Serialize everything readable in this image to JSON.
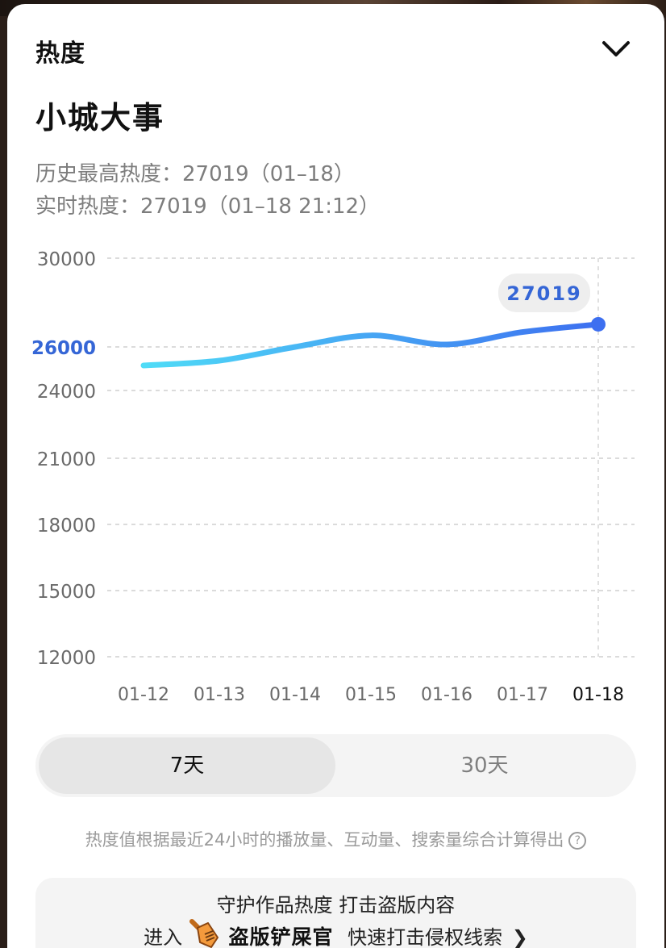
{
  "header": {
    "title": "热度",
    "collapse_icon": "chevron-down-icon"
  },
  "work": {
    "title": "小城大事"
  },
  "stats": {
    "peak_label": "历史最高热度：",
    "peak_value": "27019",
    "peak_date": "（01–18）",
    "realtime_label": "实时热度：",
    "realtime_value": "27019",
    "realtime_time": "（01–18 21:12）"
  },
  "chart_data": {
    "type": "line",
    "title": "",
    "xlabel": "",
    "ylabel": "",
    "categories": [
      "01-12",
      "01-13",
      "01-14",
      "01-15",
      "01-16",
      "01-17",
      "01-18"
    ],
    "series": [
      {
        "name": "热度",
        "values": [
          25150,
          25370,
          26000,
          26520,
          26110,
          26670,
          27019
        ]
      }
    ],
    "y_ticks": [
      30000,
      26000,
      24000,
      21000,
      18000,
      15000,
      12000
    ],
    "highlight_tick": 26000,
    "ylim": [
      12000,
      30000
    ],
    "grid": true,
    "legend": "none",
    "tooltip": {
      "category": "01-18",
      "value": "27019"
    },
    "colors": {
      "line_start": "#4fdcf7",
      "line_end": "#3d6ff0",
      "highlight": "#3566d6",
      "tick_text": "#6a6a6a",
      "grid": "#cfcfcf"
    }
  },
  "range_selector": {
    "options": [
      {
        "label": "7天",
        "active": true
      },
      {
        "label": "30天",
        "active": false
      }
    ]
  },
  "footnote": {
    "text": "热度值根据最近24小时的播放量、互动量、搜索量综合计算得出",
    "help_icon": "?"
  },
  "promo": {
    "line1": "守护作品热度 打击盗版内容",
    "enter": "进入",
    "brand": "盗版铲屎官",
    "action": "快速打击侵权线索",
    "arrow": "❯"
  }
}
